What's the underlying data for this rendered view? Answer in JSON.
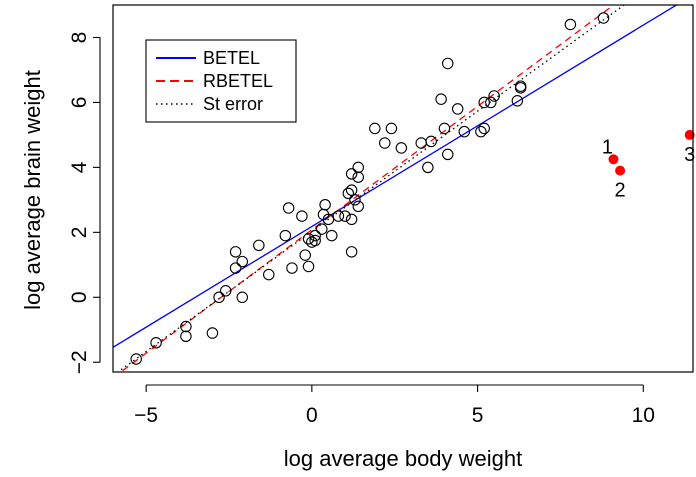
{
  "chart_data": {
    "type": "scatter",
    "xlabel": "log average body weight",
    "ylabel": "log average brain weight",
    "xlim": [
      -6,
      11.5
    ],
    "ylim": [
      -2.3,
      9
    ],
    "xticks": [
      -5,
      0,
      5,
      10
    ],
    "yticks": [
      -2,
      0,
      2,
      4,
      6,
      8
    ],
    "tick_labels_x": [
      "−5",
      "0",
      "5",
      "10"
    ],
    "tick_labels_y": [
      "−2",
      "0",
      "2",
      "4",
      "6",
      "8"
    ],
    "grid": false,
    "legend_position": "top-left",
    "legend": [
      {
        "label": "BETEL",
        "color": "#0000ff",
        "style": "solid"
      },
      {
        "label": "RBETEL",
        "color": "#ff0000",
        "style": "dashed"
      },
      {
        "label": "St error",
        "color": "#000000",
        "style": "dotted"
      }
    ],
    "lines": [
      {
        "name": "BETEL",
        "color": "#0000ff",
        "style": "solid",
        "intercept": 2.18,
        "slope": 0.62
      },
      {
        "name": "RBETEL",
        "color": "#ff0000",
        "style": "dashed",
        "intercept": 2.08,
        "slope": 0.76
      },
      {
        "name": "St error",
        "color": "#000000",
        "style": "dotted",
        "intercept": 2.03,
        "slope": 0.74
      }
    ],
    "points": [
      {
        "x": -5.3,
        "y": -1.9
      },
      {
        "x": -4.7,
        "y": -1.4
      },
      {
        "x": -3.8,
        "y": -0.9
      },
      {
        "x": -3.8,
        "y": -1.2
      },
      {
        "x": -3.0,
        "y": -1.1
      },
      {
        "x": -2.8,
        "y": 0.0
      },
      {
        "x": -2.6,
        "y": 0.2
      },
      {
        "x": -2.3,
        "y": 0.9
      },
      {
        "x": -2.3,
        "y": 1.4
      },
      {
        "x": -2.1,
        "y": 1.1
      },
      {
        "x": -2.1,
        "y": 0.0
      },
      {
        "x": -1.6,
        "y": 1.6
      },
      {
        "x": -1.3,
        "y": 0.7
      },
      {
        "x": -0.8,
        "y": 1.9
      },
      {
        "x": -0.7,
        "y": 2.75
      },
      {
        "x": -0.6,
        "y": 0.9
      },
      {
        "x": -0.3,
        "y": 2.5
      },
      {
        "x": -0.2,
        "y": 1.3
      },
      {
        "x": -0.1,
        "y": 1.8
      },
      {
        "x": -0.1,
        "y": 0.95
      },
      {
        "x": 0.0,
        "y": 1.7
      },
      {
        "x": 0.1,
        "y": 1.9
      },
      {
        "x": 0.1,
        "y": 1.75
      },
      {
        "x": 0.3,
        "y": 2.1
      },
      {
        "x": 0.35,
        "y": 2.55
      },
      {
        "x": 0.4,
        "y": 2.85
      },
      {
        "x": 0.5,
        "y": 2.4
      },
      {
        "x": 0.6,
        "y": 1.9
      },
      {
        "x": 0.8,
        "y": 2.5
      },
      {
        "x": 1.0,
        "y": 2.5
      },
      {
        "x": 1.1,
        "y": 3.2
      },
      {
        "x": 1.2,
        "y": 3.3
      },
      {
        "x": 1.2,
        "y": 3.8
      },
      {
        "x": 1.2,
        "y": 2.4
      },
      {
        "x": 1.2,
        "y": 1.4
      },
      {
        "x": 1.3,
        "y": 3.0
      },
      {
        "x": 1.4,
        "y": 2.8
      },
      {
        "x": 1.4,
        "y": 3.7
      },
      {
        "x": 1.4,
        "y": 4.0
      },
      {
        "x": 1.9,
        "y": 5.2
      },
      {
        "x": 2.2,
        "y": 4.75
      },
      {
        "x": 2.4,
        "y": 5.2
      },
      {
        "x": 2.7,
        "y": 4.6
      },
      {
        "x": 3.3,
        "y": 4.75
      },
      {
        "x": 3.5,
        "y": 4.0
      },
      {
        "x": 3.6,
        "y": 4.8
      },
      {
        "x": 3.9,
        "y": 6.1
      },
      {
        "x": 4.0,
        "y": 5.2
      },
      {
        "x": 4.1,
        "y": 4.4
      },
      {
        "x": 4.1,
        "y": 7.2
      },
      {
        "x": 4.4,
        "y": 5.8
      },
      {
        "x": 4.6,
        "y": 5.1
      },
      {
        "x": 5.1,
        "y": 5.1
      },
      {
        "x": 5.2,
        "y": 5.2
      },
      {
        "x": 5.2,
        "y": 6.0
      },
      {
        "x": 5.4,
        "y": 6.0
      },
      {
        "x": 5.5,
        "y": 6.2
      },
      {
        "x": 6.2,
        "y": 6.05
      },
      {
        "x": 6.3,
        "y": 6.5
      },
      {
        "x": 6.3,
        "y": 6.45
      },
      {
        "x": 7.8,
        "y": 8.4
      },
      {
        "x": 8.8,
        "y": 8.6
      }
    ],
    "outliers": [
      {
        "label": "1",
        "x": 9.1,
        "y": 4.25,
        "color": "#ff0000",
        "label_pos": "above-left"
      },
      {
        "label": "2",
        "x": 9.3,
        "y": 3.9,
        "color": "#ff0000",
        "label_pos": "below"
      },
      {
        "label": "3",
        "x": 11.4,
        "y": 5.0,
        "color": "#ff0000",
        "label_pos": "below"
      }
    ]
  }
}
